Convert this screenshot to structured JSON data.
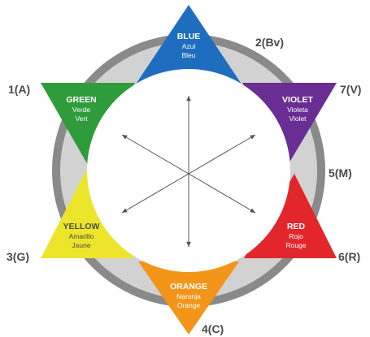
{
  "segments": [
    {
      "id": "blue",
      "name": "BLUE",
      "alt1": "Azul",
      "alt2": "Bleu",
      "color": "#1f6dbf"
    },
    {
      "id": "violet",
      "name": "VIOLET",
      "alt1": "Violeta",
      "alt2": "Violet",
      "color": "#6a2d94"
    },
    {
      "id": "red",
      "name": "RED",
      "alt1": "Rojo",
      "alt2": "Rouge",
      "color": "#e3262c"
    },
    {
      "id": "orange",
      "name": "ORANGE",
      "alt1": "Naranja",
      "alt2": "Orange",
      "color": "#f39519"
    },
    {
      "id": "yellow",
      "name": "YELLOW",
      "alt1": "Amarillo",
      "alt2": "Jaune",
      "color": "#ede52a"
    },
    {
      "id": "green",
      "name": "GREEN",
      "alt1": "Verde",
      "alt2": "Vert",
      "color": "#2f9c3c"
    }
  ],
  "position_labels": {
    "top_right": "2(Bv)",
    "upper_left": "1(A)",
    "upper_right": "7(V)",
    "right": "5(M)",
    "lower_left": "3(G)",
    "lower_right": "6(R)",
    "bottom": "4(C)"
  },
  "colors": {
    "ring_outer": "#8a8a8a",
    "ring_inner": "#d2d2d2",
    "center": "#ffffff",
    "arrows": "#555555",
    "labels": "#4a4a4a"
  }
}
